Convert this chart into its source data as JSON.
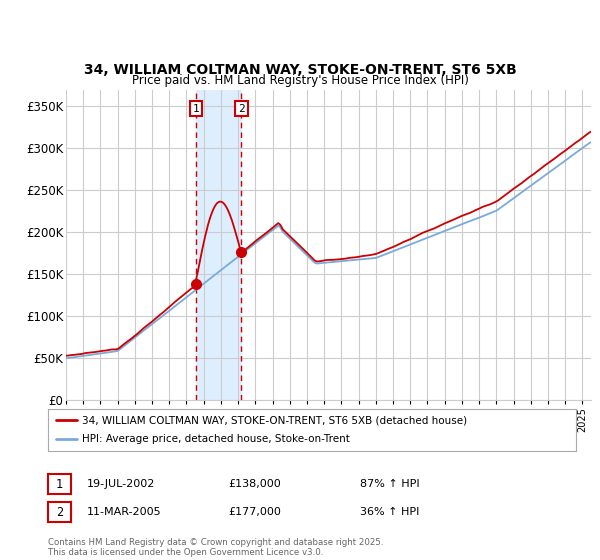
{
  "title": "34, WILLIAM COLTMAN WAY, STOKE-ON-TRENT, ST6 5XB",
  "subtitle": "Price paid vs. HM Land Registry's House Price Index (HPI)",
  "ylim": [
    0,
    370000
  ],
  "xlim_start": 1995.0,
  "xlim_end": 2025.5,
  "sale1_date": 2002.54,
  "sale1_price": 138000,
  "sale1_label": "1",
  "sale1_date_str": "19-JUL-2002",
  "sale1_amount_str": "£138,000",
  "sale1_hpi_str": "87% ↑ HPI",
  "sale2_date": 2005.19,
  "sale2_price": 177000,
  "sale2_label": "2",
  "sale2_date_str": "11-MAR-2005",
  "sale2_amount_str": "£177,000",
  "sale2_hpi_str": "36% ↑ HPI",
  "property_color": "#cc0000",
  "hpi_color": "#7aaadd",
  "shaded_color": "#ddeeff",
  "background_color": "#ffffff",
  "grid_color": "#cccccc",
  "legend_label_property": "34, WILLIAM COLTMAN WAY, STOKE-ON-TRENT, ST6 5XB (detached house)",
  "legend_label_hpi": "HPI: Average price, detached house, Stoke-on-Trent",
  "footer": "Contains HM Land Registry data © Crown copyright and database right 2025.\nThis data is licensed under the Open Government Licence v3.0."
}
